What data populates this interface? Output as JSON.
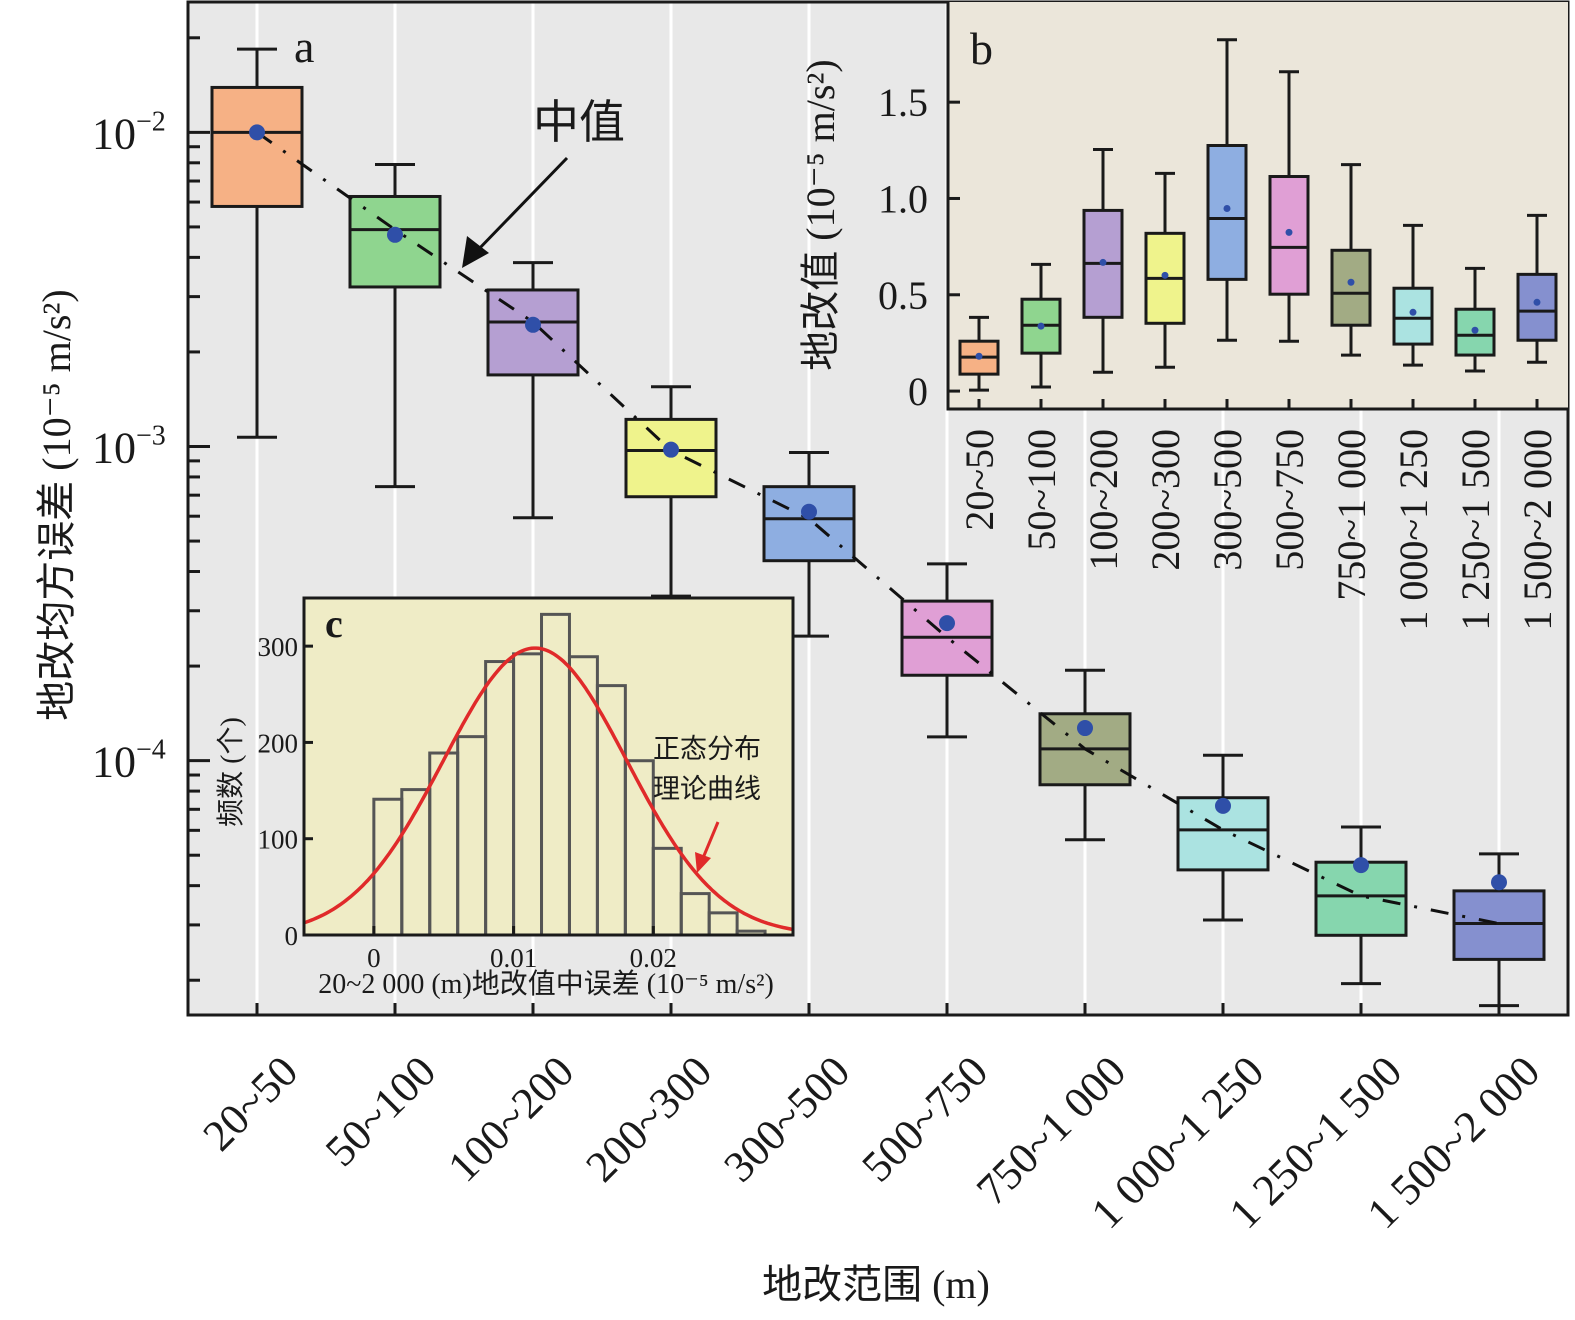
{
  "chart_data": [
    {
      "id": "a",
      "type": "box",
      "panel_label": "a",
      "title": "",
      "xlabel": "地改范围 (m)",
      "ylabel": "地改均方误差 (10⁻⁵ m/s²)",
      "yscale": "log",
      "ylim": [
        1.55e-05,
        0.026
      ],
      "yticks": [
        0.01,
        0.001,
        0.0001
      ],
      "ytick_labels": [
        {
          "base": "10",
          "exp": "−2"
        },
        {
          "base": "10",
          "exp": "−3"
        },
        {
          "base": "10",
          "exp": "−4"
        }
      ],
      "grid": "vertical",
      "categories": [
        "20~50",
        "50~100",
        "100~200",
        "200~300",
        "300~500",
        "500~750",
        "750~1 000",
        "1 000~1 250",
        "1 250~1 500",
        "1 500~2 000"
      ],
      "colors": [
        "#f6b185",
        "#8fd58f",
        "#b59fd2",
        "#eff38c",
        "#8eaee1",
        "#e09fd5",
        "#a2ab84",
        "#abe3e1",
        "#86d6ae",
        "#8590cf"
      ],
      "boxes": [
        {
          "whisker_high": 0.0184,
          "q3": 0.0139,
          "median": 0.01,
          "q1": 0.00581,
          "whisker_low": 0.00107,
          "mean": 0.01
        },
        {
          "whisker_high": 0.0079,
          "q3": 0.00625,
          "median": 0.0049,
          "q1": 0.00322,
          "whisker_low": 0.000745,
          "mean": 0.00472
        },
        {
          "whisker_high": 0.00385,
          "q3": 0.00315,
          "median": 0.00249,
          "q1": 0.00169,
          "whisker_low": 0.000593,
          "mean": 0.00244
        },
        {
          "whisker_high": 0.00155,
          "q3": 0.00122,
          "median": 0.000971,
          "q1": 0.000692,
          "whisker_low": 0.000334,
          "mean": 0.000977
        },
        {
          "whisker_high": 0.000957,
          "q3": 0.000745,
          "median": 0.000589,
          "q1": 0.000433,
          "whisker_low": 0.000249,
          "mean": 0.00062
        },
        {
          "whisker_high": 0.000423,
          "q3": 0.000322,
          "median": 0.000247,
          "q1": 0.000187,
          "whisker_low": 0.000119,
          "mean": 0.000274
        },
        {
          "whisker_high": 0.000194,
          "q3": 0.000141,
          "median": 0.000109,
          "q1": 8.38e-05,
          "whisker_low": 5.6e-05,
          "mean": 0.000127
        },
        {
          "whisker_high": 0.000104,
          "q3": 7.62e-05,
          "median": 6.02e-05,
          "q1": 4.49e-05,
          "whisker_low": 3.11e-05,
          "mean": 7.18e-05
        },
        {
          "whisker_high": 6.15e-05,
          "q3": 4.75e-05,
          "median": 3.71e-05,
          "q1": 2.78e-05,
          "whisker_low": 1.95e-05,
          "mean": 4.65e-05
        },
        {
          "whisker_high": 5.05e-05,
          "q3": 3.85e-05,
          "median": 3.03e-05,
          "q1": 2.33e-05,
          "whisker_low": 1.66e-05,
          "mean": 4.1e-05
        }
      ],
      "median_line": {
        "style": "dash-dot",
        "connects": "medians"
      },
      "annotation": {
        "text": "中值",
        "points_to": "median trend line"
      },
      "mean_marker_color": "#2f4fa8",
      "background": "#e8e8e8"
    },
    {
      "id": "b",
      "type": "box",
      "panel_label": "b",
      "ylabel": "地改值 (10⁻⁵ m/s²)",
      "ylim": [
        -0.093,
        2.02
      ],
      "yticks": [
        0,
        0.5,
        1.0,
        1.5
      ],
      "ytick_labels": [
        "0",
        "0.5",
        "1.0",
        "1.5"
      ],
      "categories": [
        "20~50",
        "50~100",
        "100~200",
        "200~300",
        "300~500",
        "500~750",
        "750~1 000",
        "1 000~1 250",
        "1 250~1 500",
        "1 500~2 000"
      ],
      "boxes": [
        {
          "whisker_high": 0.383,
          "q3": 0.259,
          "median": 0.176,
          "q1": 0.088,
          "whisker_low": 0.005,
          "mean": 0.181
        },
        {
          "whisker_high": 0.658,
          "q3": 0.477,
          "median": 0.342,
          "q1": 0.197,
          "whisker_low": 0.021,
          "mean": 0.337
        },
        {
          "whisker_high": 1.254,
          "q3": 0.938,
          "median": 0.663,
          "q1": 0.383,
          "whisker_low": 0.098,
          "mean": 0.668
        },
        {
          "whisker_high": 1.13,
          "q3": 0.819,
          "median": 0.585,
          "q1": 0.352,
          "whisker_low": 0.124,
          "mean": 0.601
        },
        {
          "whisker_high": 1.824,
          "q3": 1.275,
          "median": 0.896,
          "q1": 0.58,
          "whisker_low": 0.264,
          "mean": 0.948
        },
        {
          "whisker_high": 1.658,
          "q3": 1.114,
          "median": 0.746,
          "q1": 0.503,
          "whisker_low": 0.259,
          "mean": 0.824
        },
        {
          "whisker_high": 1.176,
          "q3": 0.731,
          "median": 0.508,
          "q1": 0.342,
          "whisker_low": 0.187,
          "mean": 0.565
        },
        {
          "whisker_high": 0.86,
          "q3": 0.534,
          "median": 0.378,
          "q1": 0.244,
          "whisker_low": 0.135,
          "mean": 0.409
        },
        {
          "whisker_high": 0.637,
          "q3": 0.425,
          "median": 0.29,
          "q1": 0.187,
          "whisker_low": 0.104,
          "mean": 0.316
        },
        {
          "whisker_high": 0.912,
          "q3": 0.606,
          "median": 0.415,
          "q1": 0.264,
          "whisker_low": 0.15,
          "mean": 0.461
        }
      ],
      "background": "#ebe6da"
    },
    {
      "id": "c",
      "type": "bar",
      "subtype": "histogram",
      "panel_label": "c",
      "xlabel": "20~2 000 (m)地改值中误差 (10⁻⁵ m/s²)",
      "ylabel": "频数 (个)",
      "xlim": [
        -0.005,
        0.03
      ],
      "ylim": [
        0,
        350
      ],
      "xticks": [
        0,
        0.01,
        0.02
      ],
      "xtick_labels": [
        "0",
        "0.01",
        "0.02"
      ],
      "yticks": [
        0,
        100,
        200,
        300
      ],
      "ytick_labels": [
        "0",
        "100",
        "200",
        "300"
      ],
      "bin_start": 0,
      "bin_width": 0.002,
      "counts": [
        141,
        151,
        189,
        206,
        284,
        292,
        333,
        289,
        259,
        181,
        90,
        43,
        23,
        4
      ],
      "normal_fit": {
        "mean": 0.01154,
        "sd": 0.00658,
        "peak": 298,
        "color": "#e02a2a"
      },
      "annotation": {
        "line1": "正态分布",
        "line2": "理论曲线"
      },
      "background": "#efecc6"
    }
  ]
}
